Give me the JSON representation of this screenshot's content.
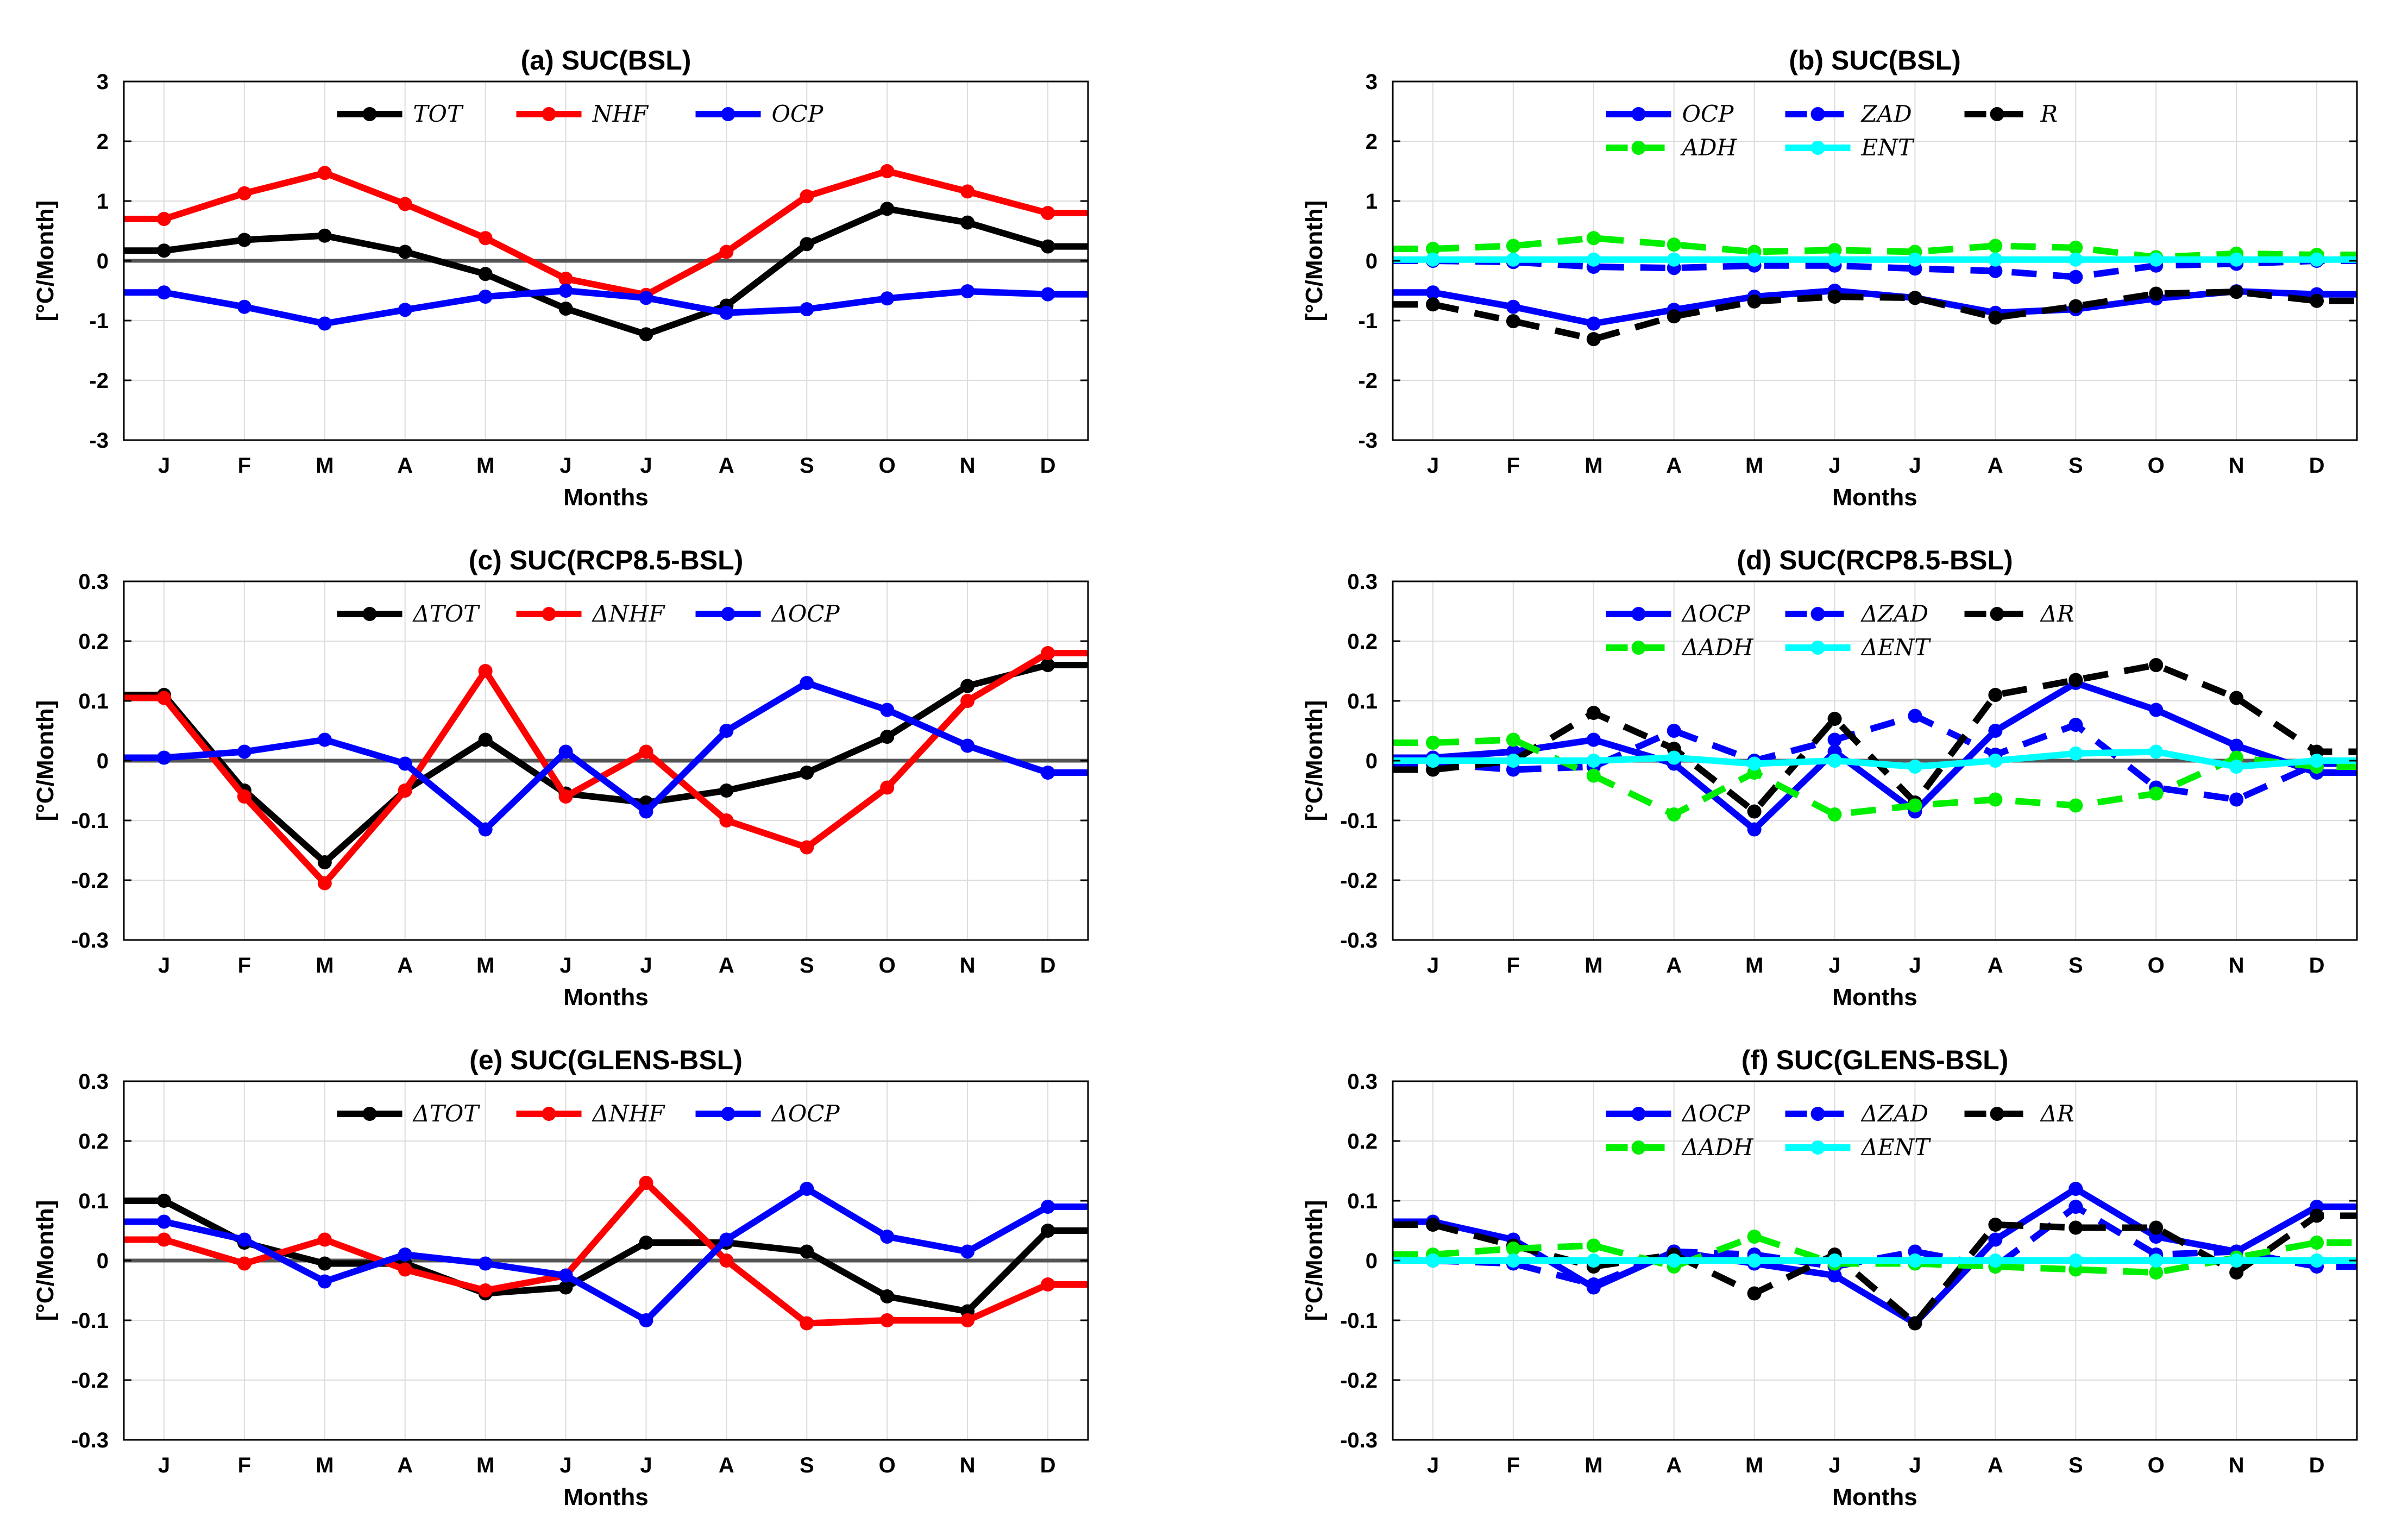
{
  "chart_data": [
    {
      "id": "a",
      "type": "line",
      "title": "(a) SUC(BSL)",
      "xlabel": "Months",
      "ylabel": "[°C/Month]",
      "categories": [
        "J",
        "F",
        "M",
        "A",
        "M",
        "J",
        "J",
        "A",
        "S",
        "O",
        "N",
        "D"
      ],
      "ylim": [
        -3,
        3
      ],
      "yticks": [
        -3,
        -2,
        -1,
        0,
        1,
        2,
        3
      ],
      "ytick_labels": [
        "-3",
        "-2",
        "-1",
        "0",
        "1",
        "2",
        "3"
      ],
      "grid": true,
      "legend_position": "top-center",
      "series": [
        {
          "name": "TOT",
          "color": "#000000",
          "dash": false,
          "values": [
            0.17,
            0.35,
            0.42,
            0.15,
            -0.22,
            -0.8,
            -1.23,
            -0.75,
            0.28,
            0.87,
            0.64,
            0.24
          ]
        },
        {
          "name": "NHF",
          "color": "#ff0000",
          "dash": false,
          "values": [
            0.7,
            1.13,
            1.47,
            0.95,
            0.38,
            -0.3,
            -0.57,
            0.15,
            1.08,
            1.5,
            1.16,
            0.8
          ]
        },
        {
          "name": "OCP",
          "color": "#0000ff",
          "dash": false,
          "values": [
            -0.53,
            -0.77,
            -1.05,
            -0.82,
            -0.6,
            -0.5,
            -0.62,
            -0.87,
            -0.81,
            -0.63,
            -0.51,
            -0.56
          ]
        }
      ]
    },
    {
      "id": "b",
      "type": "line",
      "title": "(b) SUC(BSL)",
      "xlabel": "Months",
      "ylabel": "[°C/Month]",
      "categories": [
        "J",
        "F",
        "M",
        "A",
        "M",
        "J",
        "J",
        "A",
        "S",
        "O",
        "N",
        "D"
      ],
      "ylim": [
        -3,
        3
      ],
      "yticks": [
        -3,
        -2,
        -1,
        0,
        1,
        2,
        3
      ],
      "ytick_labels": [
        "-3",
        "-2",
        "-1",
        "0",
        "1",
        "2",
        "3"
      ],
      "grid": true,
      "legend_position": "top-center",
      "series": [
        {
          "name": "OCP",
          "color": "#0000ff",
          "dash": false,
          "values": [
            -0.53,
            -0.77,
            -1.05,
            -0.82,
            -0.6,
            -0.5,
            -0.62,
            -0.87,
            -0.81,
            -0.63,
            -0.51,
            -0.56
          ]
        },
        {
          "name": "ZAD",
          "color": "#0000ff",
          "dash": true,
          "values": [
            0.0,
            -0.02,
            -0.1,
            -0.12,
            -0.08,
            -0.08,
            -0.13,
            -0.17,
            -0.27,
            -0.08,
            -0.05,
            0.0
          ]
        },
        {
          "name": "R",
          "color": "#000000",
          "dash": true,
          "values": [
            -0.73,
            -1.01,
            -1.31,
            -0.93,
            -0.68,
            -0.6,
            -0.62,
            -0.95,
            -0.76,
            -0.55,
            -0.52,
            -0.67
          ]
        },
        {
          "name": "ADH",
          "color": "#00ee00",
          "dash": true,
          "values": [
            0.2,
            0.25,
            0.38,
            0.27,
            0.15,
            0.18,
            0.15,
            0.25,
            0.22,
            0.06,
            0.12,
            0.1
          ]
        },
        {
          "name": "ENT",
          "color": "#00ffff",
          "dash": false,
          "values": [
            0.02,
            0.02,
            0.02,
            0.02,
            0.02,
            0.02,
            0.02,
            0.02,
            0.02,
            0.02,
            0.02,
            0.02
          ]
        }
      ]
    },
    {
      "id": "c",
      "type": "line",
      "title": "(c) SUC(RCP8.5-BSL)",
      "xlabel": "Months",
      "ylabel": "[°C/Month]",
      "categories": [
        "J",
        "F",
        "M",
        "A",
        "M",
        "J",
        "J",
        "A",
        "S",
        "O",
        "N",
        "D"
      ],
      "ylim": [
        -0.3,
        0.3
      ],
      "yticks": [
        -0.3,
        -0.2,
        -0.1,
        0,
        0.1,
        0.2,
        0.3
      ],
      "ytick_labels": [
        "-0.3",
        "-0.2",
        "-0.1",
        "0",
        "0.1",
        "0.2",
        "0.3"
      ],
      "grid": true,
      "legend_position": "top-center",
      "series": [
        {
          "name": "ΔTOT",
          "color": "#000000",
          "dash": false,
          "values": [
            0.11,
            -0.05,
            -0.17,
            -0.05,
            0.035,
            -0.055,
            -0.07,
            -0.05,
            -0.02,
            0.04,
            0.125,
            0.16
          ]
        },
        {
          "name": "ΔNHF",
          "color": "#ff0000",
          "dash": false,
          "values": [
            0.105,
            -0.06,
            -0.205,
            -0.05,
            0.15,
            -0.06,
            0.015,
            -0.1,
            -0.145,
            -0.045,
            0.1,
            0.18
          ]
        },
        {
          "name": "ΔOCP",
          "color": "#0000ff",
          "dash": false,
          "values": [
            0.005,
            0.015,
            0.035,
            -0.005,
            -0.115,
            0.015,
            -0.085,
            0.05,
            0.13,
            0.085,
            0.025,
            -0.02
          ]
        }
      ]
    },
    {
      "id": "d",
      "type": "line",
      "title": "(d) SUC(RCP8.5-BSL)",
      "xlabel": "Months",
      "ylabel": "[°C/Month]",
      "categories": [
        "J",
        "F",
        "M",
        "A",
        "M",
        "J",
        "J",
        "A",
        "S",
        "O",
        "N",
        "D"
      ],
      "ylim": [
        -0.3,
        0.3
      ],
      "yticks": [
        -0.3,
        -0.2,
        -0.1,
        0,
        0.1,
        0.2,
        0.3
      ],
      "ytick_labels": [
        "-0.3",
        "-0.2",
        "-0.1",
        "0",
        "0.1",
        "0.2",
        "0.3"
      ],
      "grid": true,
      "legend_position": "top-center",
      "series": [
        {
          "name": "ΔOCP",
          "color": "#0000ff",
          "dash": false,
          "values": [
            0.005,
            0.015,
            0.035,
            -0.005,
            -0.115,
            0.015,
            -0.085,
            0.05,
            0.13,
            0.085,
            0.025,
            -0.02
          ]
        },
        {
          "name": "ΔZAD",
          "color": "#0000ff",
          "dash": true,
          "values": [
            -0.005,
            -0.015,
            -0.01,
            0.05,
            0.0,
            0.035,
            0.075,
            0.01,
            0.06,
            -0.045,
            -0.065,
            -0.005
          ]
        },
        {
          "name": "ΔR",
          "color": "#000000",
          "dash": true,
          "values": [
            -0.015,
            0.0,
            0.08,
            0.02,
            -0.085,
            0.07,
            -0.07,
            0.11,
            0.135,
            0.16,
            0.105,
            0.015
          ]
        },
        {
          "name": "ΔADH",
          "color": "#00ee00",
          "dash": true,
          "values": [
            0.03,
            0.035,
            -0.025,
            -0.09,
            -0.02,
            -0.09,
            -0.075,
            -0.065,
            -0.075,
            -0.055,
            0.005,
            -0.01
          ]
        },
        {
          "name": "ΔENT",
          "color": "#00ffff",
          "dash": false,
          "values": [
            0.0,
            0.0,
            0.0,
            0.005,
            -0.005,
            0.0,
            -0.01,
            0.0,
            0.012,
            0.015,
            -0.01,
            0.0
          ]
        }
      ]
    },
    {
      "id": "e",
      "type": "line",
      "title": "(e) SUC(GLENS-BSL)",
      "xlabel": "Months",
      "ylabel": "[°C/Month]",
      "categories": [
        "J",
        "F",
        "M",
        "A",
        "M",
        "J",
        "J",
        "A",
        "S",
        "O",
        "N",
        "D"
      ],
      "ylim": [
        -0.3,
        0.3
      ],
      "yticks": [
        -0.3,
        -0.2,
        -0.1,
        0,
        0.1,
        0.2,
        0.3
      ],
      "ytick_labels": [
        "-0.3",
        "-0.2",
        "-0.1",
        "0",
        "0.1",
        "0.2",
        "0.3"
      ],
      "grid": true,
      "legend_position": "top-center",
      "series": [
        {
          "name": "ΔTOT",
          "color": "#000000",
          "dash": false,
          "values": [
            0.1,
            0.03,
            -0.005,
            -0.005,
            -0.055,
            -0.045,
            0.03,
            0.03,
            0.015,
            -0.06,
            -0.085,
            0.05
          ]
        },
        {
          "name": "ΔNHF",
          "color": "#ff0000",
          "dash": false,
          "values": [
            0.035,
            -0.005,
            0.035,
            -0.015,
            -0.05,
            -0.025,
            0.13,
            0.0,
            -0.105,
            -0.1,
            -0.1,
            -0.04
          ]
        },
        {
          "name": "ΔOCP",
          "color": "#0000ff",
          "dash": false,
          "values": [
            0.065,
            0.035,
            -0.035,
            0.01,
            -0.005,
            -0.025,
            -0.1,
            0.035,
            0.12,
            0.04,
            0.015,
            0.09
          ]
        }
      ]
    },
    {
      "id": "f",
      "type": "line",
      "title": "(f) SUC(GLENS-BSL)",
      "xlabel": "Months",
      "ylabel": "[°C/Month]",
      "categories": [
        "J",
        "F",
        "M",
        "A",
        "M",
        "J",
        "J",
        "A",
        "S",
        "O",
        "N",
        "D"
      ],
      "ylim": [
        -0.3,
        0.3
      ],
      "yticks": [
        -0.3,
        -0.2,
        -0.1,
        0,
        0.1,
        0.2,
        0.3
      ],
      "ytick_labels": [
        "-0.3",
        "-0.2",
        "-0.1",
        "0",
        "0.1",
        "0.2",
        "0.3"
      ],
      "grid": true,
      "legend_position": "top-center",
      "series": [
        {
          "name": "ΔOCP",
          "color": "#0000ff",
          "dash": false,
          "values": [
            0.065,
            0.035,
            -0.045,
            0.015,
            -0.005,
            -0.025,
            -0.105,
            0.035,
            0.12,
            0.04,
            0.015,
            0.09
          ]
        },
        {
          "name": "ΔZAD",
          "color": "#0000ff",
          "dash": true,
          "values": [
            0.0,
            -0.005,
            -0.04,
            0.015,
            0.01,
            -0.01,
            0.015,
            -0.01,
            0.09,
            0.01,
            0.015,
            -0.01
          ]
        },
        {
          "name": "ΔR",
          "color": "#000000",
          "dash": true,
          "values": [
            0.06,
            0.025,
            -0.01,
            0.01,
            -0.055,
            0.01,
            -0.105,
            0.06,
            0.055,
            0.055,
            -0.02,
            0.075
          ]
        },
        {
          "name": "ΔADH",
          "color": "#00ee00",
          "dash": true,
          "values": [
            0.01,
            0.02,
            0.025,
            -0.01,
            0.04,
            -0.005,
            -0.005,
            -0.01,
            -0.015,
            -0.02,
            0.005,
            0.03
          ]
        },
        {
          "name": "ΔENT",
          "color": "#00ffff",
          "dash": false,
          "values": [
            0.0,
            0.0,
            0.0,
            0.0,
            0.0,
            0.0,
            0.0,
            0.0,
            0.0,
            0.0,
            0.0,
            0.0
          ]
        }
      ]
    }
  ]
}
